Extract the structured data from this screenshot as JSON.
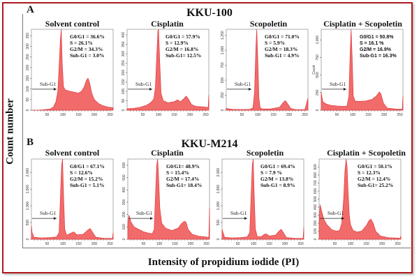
{
  "figure": {
    "ylabel": "Count number",
    "xlabel": "Intensity of propidium iodide (PI)",
    "fill_color": "#f26b6b",
    "stroke_color": "#e0383b",
    "border_color": "#b0181c"
  },
  "rows": [
    {
      "letter": "A",
      "title": "KKU-100"
    },
    {
      "letter": "B",
      "title": "KKU-M214"
    }
  ],
  "chart_data": [
    {
      "type": "area",
      "row": "KKU-100",
      "title": "Solvent control",
      "xlim": [
        0,
        260
      ],
      "xticks": [
        50,
        100,
        150,
        200,
        250
      ],
      "ylim": [
        0,
        380
      ],
      "yticks": [
        0,
        50,
        100,
        150,
        200,
        250,
        300,
        350
      ],
      "stats": [
        "G0/G1 = 36.6%",
        "S = 26.1%",
        "G2/M = 34.3%",
        "Sub-G1 = 3.0%"
      ],
      "subg1_label": "Sub-G1",
      "x": [
        0,
        20,
        40,
        60,
        70,
        78,
        84,
        88,
        92,
        95,
        98,
        102,
        108,
        120,
        135,
        150,
        160,
        168,
        175,
        180,
        185,
        192,
        200,
        215,
        230,
        245,
        260
      ],
      "y": [
        0,
        0,
        2,
        6,
        15,
        40,
        90,
        200,
        330,
        380,
        220,
        110,
        95,
        90,
        85,
        80,
        90,
        110,
        140,
        150,
        130,
        80,
        50,
        30,
        20,
        14,
        12
      ]
    },
    {
      "type": "area",
      "row": "KKU-100",
      "title": "Cisplatin",
      "xlim": [
        0,
        260
      ],
      "xticks": [
        50,
        100,
        150,
        200,
        250
      ],
      "ylim": [
        0,
        430
      ],
      "yticks": [
        0,
        50,
        100,
        150,
        200,
        250,
        300,
        350,
        400
      ],
      "stats": [
        "G0/G1 = 57.9%",
        "S = 12.9%",
        "G2/M = 16.8%",
        "Sub-G1= 12.5%"
      ],
      "subg1_label": "Sub-G1",
      "x": [
        0,
        20,
        40,
        60,
        75,
        85,
        90,
        94,
        98,
        100,
        104,
        108,
        115,
        130,
        150,
        160,
        170,
        180,
        188,
        195,
        205,
        220,
        240,
        258,
        260
      ],
      "y": [
        8,
        10,
        15,
        25,
        40,
        60,
        120,
        280,
        420,
        430,
        250,
        90,
        50,
        40,
        45,
        55,
        45,
        60,
        75,
        60,
        30,
        20,
        18,
        15,
        80
      ]
    },
    {
      "type": "area",
      "row": "KKU-100",
      "title": "Scopoletin",
      "xlim": [
        0,
        260
      ],
      "xticks": [
        50,
        100,
        150,
        200,
        250
      ],
      "ylim": [
        0,
        1350
      ],
      "yticks": [
        0,
        250,
        500,
        750,
        1000,
        1250
      ],
      "stats": [
        "G0/G1 = 71.0%",
        "S = 5.9%",
        "G2/M = 18.3%",
        "Sub-G1 = 4.9%"
      ],
      "subg1_label": "Sub-G1",
      "x": [
        0,
        20,
        50,
        75,
        85,
        90,
        94,
        97,
        100,
        104,
        108,
        115,
        140,
        170,
        180,
        188,
        195,
        205,
        220,
        250,
        260
      ],
      "y": [
        30,
        15,
        10,
        15,
        40,
        300,
        1000,
        1350,
        900,
        200,
        40,
        20,
        20,
        50,
        120,
        160,
        110,
        30,
        10,
        8,
        200
      ]
    },
    {
      "type": "area",
      "row": "KKU-100",
      "title": "Cisplatin + Scopoletin",
      "xlim": [
        0,
        260
      ],
      "xticks": [
        50,
        100,
        150,
        200,
        250
      ],
      "ylim": [
        0,
        1150
      ],
      "yticks": [
        0,
        250,
        500,
        750,
        1000
      ],
      "ylabel_inner": "Count",
      "stats": [
        "G0/G1 = 50.8%",
        "S = 16.1 %",
        "G2/M = 16.9%",
        "Sub-G1 = 16.3%"
      ],
      "subg1_label": "Sub-G1",
      "x": [
        0,
        5,
        15,
        30,
        50,
        70,
        82,
        88,
        92,
        95,
        98,
        102,
        108,
        120,
        140,
        160,
        175,
        185,
        190,
        198,
        210,
        240,
        258,
        260
      ],
      "y": [
        250,
        120,
        90,
        70,
        60,
        55,
        60,
        200,
        800,
        1150,
        800,
        200,
        130,
        125,
        130,
        150,
        200,
        260,
        230,
        100,
        30,
        15,
        15,
        200
      ]
    },
    {
      "type": "area",
      "row": "KKU-M214",
      "title": "Solvent control",
      "xlim": [
        0,
        260
      ],
      "xticks": [
        50,
        100,
        150,
        200,
        250
      ],
      "ylim": [
        0,
        2400
      ],
      "yticks": [
        0,
        500,
        1000,
        1500,
        2000
      ],
      "stats": [
        "G0/G1 = 67.1%",
        "S = 12.6%",
        "G2/M = 15.2%",
        "Sub-G1 = 5.1%"
      ],
      "subg1_label": "Sub-G1",
      "x": [
        0,
        2,
        8,
        30,
        60,
        80,
        88,
        92,
        96,
        99,
        102,
        106,
        112,
        125,
        135,
        145,
        165,
        180,
        187,
        195,
        205,
        230,
        258,
        260
      ],
      "y": [
        400,
        200,
        60,
        40,
        50,
        70,
        200,
        1200,
        2200,
        2400,
        1400,
        300,
        120,
        180,
        220,
        130,
        150,
        280,
        320,
        200,
        60,
        30,
        25,
        200
      ]
    },
    {
      "type": "area",
      "row": "KKU-M214",
      "title": "Cisplatin",
      "xlim": [
        0,
        260
      ],
      "xticks": [
        50,
        100,
        150,
        200,
        250
      ],
      "ylim": [
        0,
        650
      ],
      "yticks": [
        0,
        100,
        200,
        300,
        400,
        500,
        600
      ],
      "stats": [
        "G0/G1= 48.9%",
        "S = 15.4%",
        "G2/M = 17.4%",
        "Sub-G1= 18.4%"
      ],
      "subg1_label": "Sub-G1",
      "x": [
        0,
        4,
        10,
        20,
        35,
        50,
        65,
        78,
        84,
        88,
        92,
        95,
        98,
        102,
        108,
        120,
        140,
        160,
        172,
        180,
        185,
        192,
        205,
        225,
        245,
        258,
        260
      ],
      "y": [
        120,
        195,
        140,
        100,
        80,
        60,
        50,
        45,
        80,
        350,
        600,
        650,
        500,
        250,
        130,
        90,
        70,
        90,
        130,
        145,
        140,
        80,
        40,
        25,
        20,
        15,
        250
      ]
    },
    {
      "type": "area",
      "row": "KKU-M214",
      "title": "Scopoletin",
      "xlim": [
        0,
        260
      ],
      "xticks": [
        50,
        100,
        150,
        200,
        250
      ],
      "ylim": [
        0,
        2400
      ],
      "yticks": [
        0,
        500,
        1000,
        1500,
        2000
      ],
      "stats": [
        "G0/G1 = 69.4%",
        "S = 7.9 %",
        "G2/M = 13.8%",
        "Sub-G1 = 8.9%"
      ],
      "subg1_label": "Sub-G1",
      "x": [
        0,
        3,
        8,
        30,
        60,
        80,
        88,
        92,
        96,
        99,
        102,
        106,
        112,
        125,
        135,
        140,
        150,
        170,
        182,
        188,
        195,
        205,
        230,
        258,
        260
      ],
      "y": [
        300,
        200,
        60,
        40,
        50,
        70,
        200,
        1200,
        2200,
        2400,
        1400,
        300,
        80,
        80,
        150,
        160,
        100,
        120,
        250,
        300,
        200,
        50,
        30,
        25,
        350
      ]
    },
    {
      "type": "area",
      "row": "KKU-M214",
      "title": "Cisplatin + Scopoletin",
      "xlim": [
        0,
        260
      ],
      "xticks": [
        50,
        100,
        150,
        200,
        250
      ],
      "ylim": [
        0,
        1000
      ],
      "yticks": [
        0,
        100,
        200,
        300,
        400,
        500,
        600,
        700,
        800,
        900
      ],
      "stats": [
        "G0/G1 = 50.1%",
        "S = 12.3%",
        "G2/M = 12.4%",
        "Sub-G1= 25.2%"
      ],
      "subg1_label": "Sub-G1",
      "x": [
        0,
        3,
        8,
        15,
        25,
        40,
        55,
        65,
        72,
        78,
        82,
        86,
        89,
        92,
        96,
        100,
        108,
        120,
        135,
        150,
        160,
        165,
        172,
        180,
        195,
        220,
        245,
        258,
        260
      ],
      "y": [
        200,
        430,
        350,
        250,
        180,
        120,
        100,
        110,
        200,
        500,
        850,
        1000,
        900,
        600,
        300,
        180,
        110,
        90,
        100,
        170,
        240,
        250,
        200,
        100,
        40,
        20,
        15,
        12,
        40
      ]
    }
  ]
}
